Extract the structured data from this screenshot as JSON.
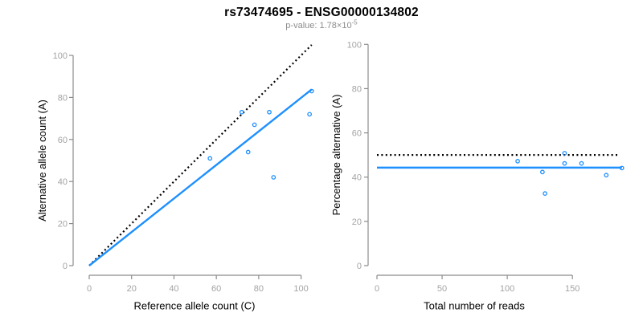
{
  "header": {
    "title": "rs73474695 - ENSG00000134802",
    "subtitle_prefix": "p-value: 1.78×10",
    "subtitle_exponent": "-5"
  },
  "colors": {
    "accent_blue": "#1E90FF",
    "axis_line": "#8c8c8c",
    "tick_label": "#a3a3a3",
    "axis_title": "#000000",
    "subtitle_gray": "#8c8c8c",
    "dotted_line": "#000000"
  },
  "chart_data": [
    {
      "type": "scatter",
      "name": "allele-counts",
      "xlabel": "Reference allele count (C)",
      "ylabel": "Alternative allele count (A)",
      "xlim": [
        0,
        105
      ],
      "ylim": [
        0,
        105
      ],
      "xticks": [
        0,
        20,
        40,
        60,
        80,
        100
      ],
      "yticks": [
        0,
        20,
        40,
        60,
        80,
        100
      ],
      "grid": false,
      "legend": null,
      "points": [
        [
          57,
          51
        ],
        [
          72,
          73
        ],
        [
          75,
          54
        ],
        [
          78,
          67
        ],
        [
          85,
          73
        ],
        [
          87,
          42
        ],
        [
          104,
          72
        ],
        [
          105,
          83
        ]
      ],
      "lines": [
        {
          "name": "identity-line",
          "style": "dotted",
          "color": "#000000",
          "x1": 0,
          "y1": 0,
          "x2": 105,
          "y2": 105
        },
        {
          "name": "regression-line",
          "style": "solid",
          "color": "#1E90FF",
          "x1": 0,
          "y1": 0,
          "x2": 105,
          "y2": 83.8
        }
      ]
    },
    {
      "type": "scatter",
      "name": "percentage-vs-reads",
      "xlabel": "Total number of reads",
      "ylabel": "Percentage alternative (A)",
      "xlim": [
        0,
        190
      ],
      "ylim": [
        0,
        100
      ],
      "xticks": [
        0,
        50,
        100,
        150
      ],
      "yticks": [
        0,
        20,
        40,
        60,
        80,
        100
      ],
      "grid": false,
      "legend": null,
      "points": [
        [
          108,
          47.2
        ],
        [
          127,
          42.3
        ],
        [
          129,
          32.6
        ],
        [
          144,
          50.8
        ],
        [
          144,
          46.2
        ],
        [
          157,
          46.2
        ],
        [
          176,
          40.9
        ],
        [
          188,
          44.1
        ]
      ],
      "lines": [
        {
          "name": "reference-line-50pct",
          "style": "dotted",
          "color": "#000000",
          "x1": 0,
          "y1": 50,
          "x2": 185,
          "y2": 50
        },
        {
          "name": "mean-line",
          "style": "solid",
          "color": "#1E90FF",
          "x1": 0,
          "y1": 44.3,
          "x2": 188,
          "y2": 44.3
        }
      ]
    }
  ]
}
